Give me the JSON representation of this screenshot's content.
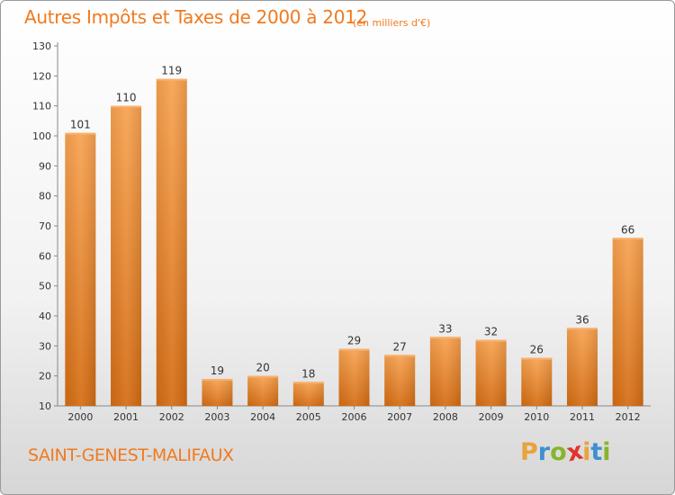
{
  "chart_data": {
    "type": "bar",
    "title": "Autres Impôts et Taxes de 2000 à 2012",
    "subtitle": "(en milliers d'€)",
    "categories": [
      "2000",
      "2001",
      "2002",
      "2003",
      "2004",
      "2005",
      "2006",
      "2007",
      "2008",
      "2009",
      "2010",
      "2011",
      "2012"
    ],
    "values": [
      101,
      110,
      119,
      19,
      20,
      18,
      29,
      27,
      33,
      32,
      26,
      36,
      66
    ],
    "value_labels": [
      "101",
      "110",
      "119",
      "19",
      "20",
      "18",
      "29",
      "27",
      "33",
      "32",
      "26",
      "36",
      "66"
    ],
    "ylim": [
      10,
      130
    ],
    "yticks": [
      10,
      20,
      30,
      40,
      50,
      60,
      70,
      80,
      90,
      100,
      110,
      120,
      130
    ],
    "grid": false,
    "bar_color": "#f0902f"
  },
  "footer": {
    "city": "SAINT-GENEST-MALIFAUX",
    "logo": [
      "P",
      "r",
      "o",
      "x",
      "i",
      "t",
      "i"
    ],
    "logo_colors": [
      "#e8a33c",
      "#3f8fcf",
      "#86b52c",
      "#e2332c",
      "#e8a33c",
      "#3f8fcf",
      "#86b52c"
    ]
  }
}
